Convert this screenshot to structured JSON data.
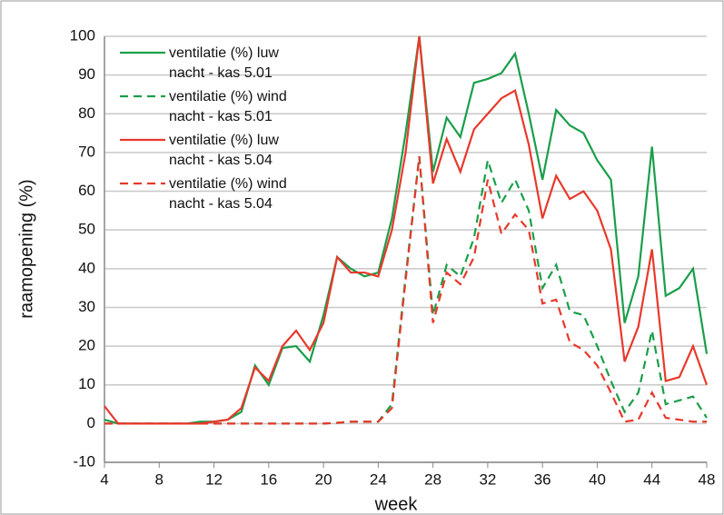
{
  "chart_data": {
    "type": "line",
    "xlabel": "week",
    "ylabel": "raamopening (%)",
    "x": [
      4,
      5,
      6,
      7,
      8,
      9,
      10,
      11,
      12,
      13,
      14,
      15,
      16,
      17,
      18,
      19,
      20,
      21,
      22,
      23,
      24,
      25,
      26,
      27,
      28,
      29,
      30,
      31,
      32,
      33,
      34,
      35,
      36,
      37,
      38,
      39,
      40,
      41,
      42,
      43,
      44,
      45,
      46,
      47,
      48
    ],
    "series": [
      {
        "name": "ventilatie (%) luw nacht - kas 5.01",
        "color": "#1a9e4a",
        "dash": false,
        "values": [
          1,
          0,
          0,
          0,
          0,
          0,
          0,
          0.5,
          0.5,
          1,
          3,
          15,
          10,
          19.5,
          20,
          16,
          28,
          43,
          40,
          38,
          39,
          53,
          75,
          100,
          65,
          79,
          74,
          88,
          89,
          90.5,
          95.5,
          80,
          63,
          81,
          77,
          75,
          68,
          63,
          26,
          38,
          71.5,
          33,
          35,
          40,
          18
        ]
      },
      {
        "name": "ventilatie (%) wind nacht - kas 5.01",
        "color": "#1a9e4a",
        "dash": true,
        "values": [
          0,
          0,
          0,
          0,
          0,
          0,
          0,
          0,
          0,
          0,
          0,
          0,
          0,
          0,
          0,
          0,
          0,
          0.2,
          0.5,
          0.5,
          0.5,
          5,
          38,
          69,
          28,
          41,
          38,
          48,
          68,
          57,
          63,
          55,
          35,
          41,
          29,
          28,
          20,
          11,
          3,
          8,
          24,
          5,
          6,
          7,
          1.5
        ]
      },
      {
        "name": "ventilatie (%) luw nacht - kas 5.04",
        "color": "#e8392b",
        "dash": false,
        "values": [
          4.5,
          0,
          0,
          0,
          0,
          0,
          0,
          0,
          0.5,
          1,
          4,
          14.5,
          11,
          20,
          24,
          19,
          26,
          43,
          39,
          39,
          38,
          50,
          70,
          100,
          62,
          73.5,
          65,
          76,
          80,
          84,
          86,
          72,
          53,
          64,
          58,
          60,
          55,
          45,
          16,
          25,
          45,
          11,
          12,
          20,
          10
        ]
      },
      {
        "name": "ventilatie (%) wind nacht - kas 5.04",
        "color": "#e8392b",
        "dash": true,
        "values": [
          0,
          0,
          0,
          0,
          0,
          0,
          0,
          0,
          0,
          0,
          0,
          0,
          0,
          0,
          0,
          0,
          0,
          0.2,
          0.5,
          0.5,
          0.5,
          4,
          37,
          69,
          26,
          39,
          36,
          43,
          63,
          49,
          54,
          50,
          31,
          32,
          21,
          19,
          15,
          8,
          0.5,
          1,
          8,
          1.5,
          1,
          0.5,
          0.5
        ]
      }
    ],
    "xlim": [
      4,
      48
    ],
    "xticks": [
      4,
      8,
      12,
      16,
      20,
      24,
      28,
      32,
      36,
      40,
      44,
      48
    ],
    "ylim": [
      -10,
      100
    ],
    "yticks": [
      -10,
      0,
      10,
      20,
      30,
      40,
      50,
      60,
      70,
      80,
      90,
      100
    ],
    "grid": true
  }
}
